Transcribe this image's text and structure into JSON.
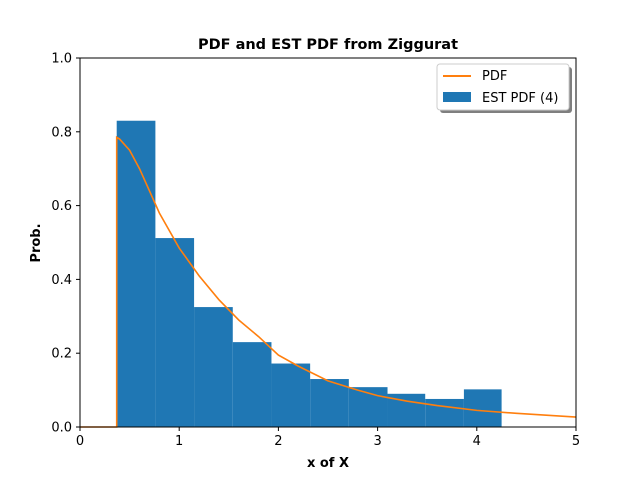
{
  "chart_data": {
    "type": "bar",
    "title": "PDF and EST PDF from Ziggurat",
    "xlabel": "x of X",
    "ylabel": "Prob.",
    "xlim": [
      0,
      5
    ],
    "ylim": [
      0,
      1.0
    ],
    "xticks": [
      "0",
      "1",
      "2",
      "3",
      "4",
      "5"
    ],
    "yticks": [
      "0.0",
      "0.2",
      "0.4",
      "0.6",
      "0.8",
      "1.0"
    ],
    "legend_position": "top-right",
    "grid": false,
    "series": [
      {
        "name": "PDF",
        "kind": "line",
        "color": "#ff7f0e",
        "x": [
          0,
          0.37,
          0.37,
          0.4,
          0.5,
          0.6,
          0.7,
          0.8,
          1.0,
          1.2,
          1.4,
          1.6,
          1.8,
          2.0,
          2.2,
          2.5,
          2.8,
          3.0,
          3.3,
          3.6,
          4.0,
          4.4,
          5.0
        ],
        "y": [
          0,
          0,
          0.785,
          0.78,
          0.75,
          0.7,
          0.64,
          0.58,
          0.485,
          0.41,
          0.345,
          0.29,
          0.245,
          0.195,
          0.165,
          0.125,
          0.1,
          0.085,
          0.07,
          0.058,
          0.045,
          0.037,
          0.027
        ]
      },
      {
        "name": "EST PDF (4)",
        "kind": "histogram",
        "color": "#1f77b4",
        "bin_edges": [
          0.37,
          0.76,
          1.15,
          1.54,
          1.93,
          2.32,
          2.71,
          3.1,
          3.48,
          3.87,
          4.25
        ],
        "values": [
          0.83,
          0.512,
          0.325,
          0.23,
          0.172,
          0.13,
          0.108,
          0.09,
          0.076,
          0.102
        ]
      }
    ]
  }
}
